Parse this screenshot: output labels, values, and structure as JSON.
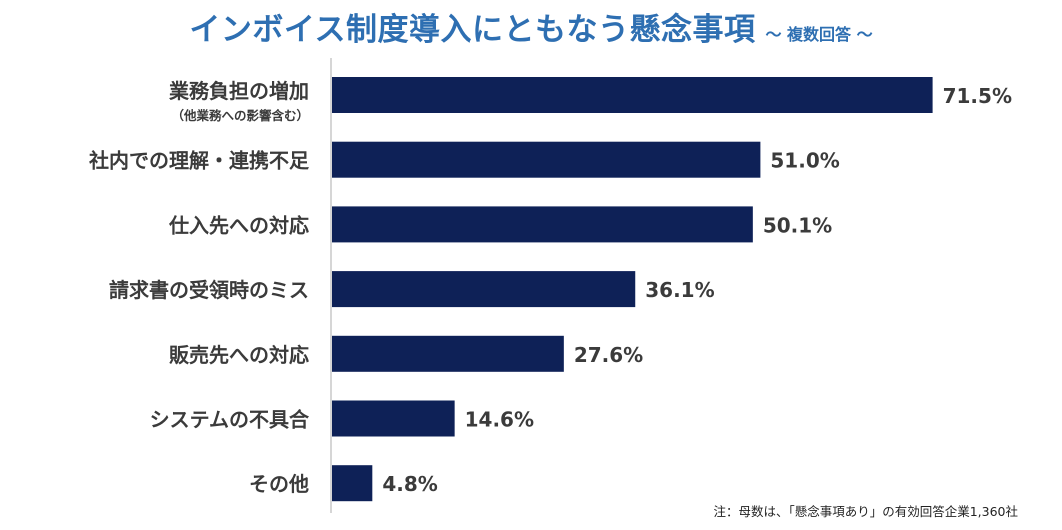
{
  "title": "インボイス制度導入にともなう懸念事項",
  "subtitle": "～ 複数回答 ～",
  "note": "注：母数は、「懸念事項あり」の有効回答企業1,360社",
  "chart_data": {
    "type": "bar",
    "orientation": "horizontal",
    "title": "インボイス制度導入にともなう懸念事項",
    "subtitle": "～ 複数回答 ～",
    "categories": [
      "業務負担の増加",
      "社内での理解・連携不足",
      "仕入先への対応",
      "請求書の受領時のミス",
      "販売先への対応",
      "システムの不具合",
      "その他"
    ],
    "category_sublabels": [
      "（他業務への影響含む）",
      "",
      "",
      "",
      "",
      "",
      ""
    ],
    "values": [
      71.5,
      51.0,
      50.1,
      36.1,
      27.6,
      14.6,
      4.8
    ],
    "value_labels": [
      "71.5%",
      "51.0%",
      "50.1%",
      "36.1%",
      "27.6%",
      "14.6%",
      "4.8%"
    ],
    "unit": "%",
    "xlim": [
      0,
      100
    ],
    "grid": false,
    "legend": "none",
    "bar_color": "#0e2157",
    "axis_color": "#c8c8c8"
  }
}
